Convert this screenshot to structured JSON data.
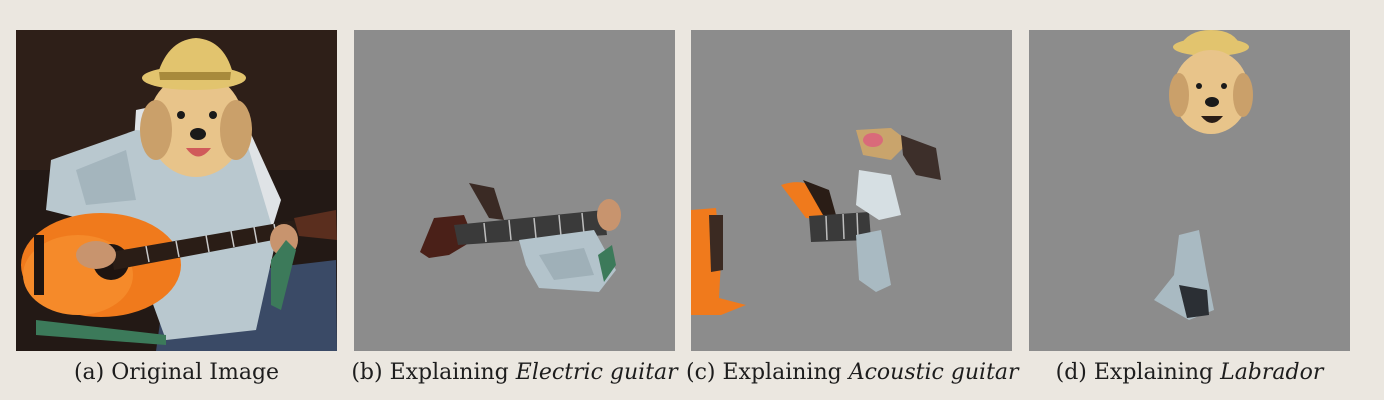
{
  "figure": {
    "panels": [
      {
        "id": "a",
        "label": "(a)",
        "text": "Original Image",
        "emphasis": ""
      },
      {
        "id": "b",
        "label": "(b)",
        "text": "Explaining",
        "emphasis": "Electric guitar"
      },
      {
        "id": "c",
        "label": "(c)",
        "text": "Explaining",
        "emphasis": "Acoustic guitar"
      },
      {
        "id": "d",
        "label": "(d)",
        "text": "Explaining",
        "emphasis": "Labrador"
      }
    ],
    "colors": {
      "page_background": "#ebe7e0",
      "mask_gray": "#8c8c8c",
      "guitar_orange": "#f07a1c",
      "shirt_blue": "#b9c8cf",
      "dog_fur": "#e8c48a",
      "hat_straw": "#e2c46e",
      "dark_background": "#231915"
    }
  }
}
